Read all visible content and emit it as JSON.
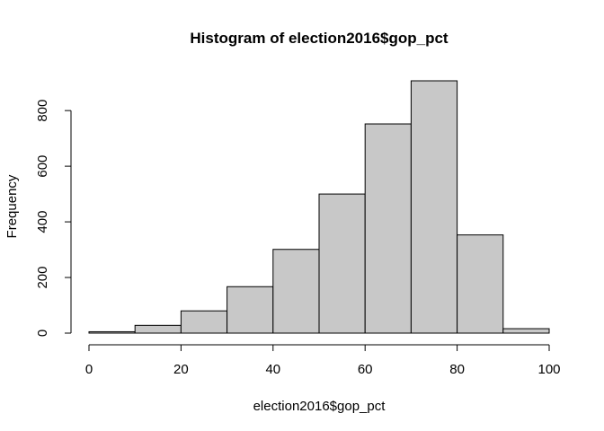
{
  "chart_data": {
    "type": "histogram",
    "title": "Histogram of election2016$gop_pct",
    "xlabel": "election2016$gop_pct",
    "ylabel": "Frequency",
    "bins": [
      {
        "from": 0,
        "to": 10,
        "count": 5
      },
      {
        "from": 10,
        "to": 20,
        "count": 28
      },
      {
        "from": 20,
        "to": 30,
        "count": 80
      },
      {
        "from": 30,
        "to": 40,
        "count": 167
      },
      {
        "from": 40,
        "to": 50,
        "count": 301
      },
      {
        "from": 50,
        "to": 60,
        "count": 500
      },
      {
        "from": 60,
        "to": 70,
        "count": 752
      },
      {
        "from": 70,
        "to": 80,
        "count": 907
      },
      {
        "from": 80,
        "to": 90,
        "count": 353
      },
      {
        "from": 90,
        "to": 100,
        "count": 16
      }
    ],
    "x_ticks": [
      0,
      20,
      40,
      60,
      80,
      100
    ],
    "y_ticks": [
      0,
      200,
      400,
      600,
      800
    ],
    "xlim": [
      0,
      100
    ],
    "ylim": [
      0,
      907
    ],
    "grid": false,
    "bar_color": "#c8c8c8",
    "edge_color": "#000000"
  }
}
